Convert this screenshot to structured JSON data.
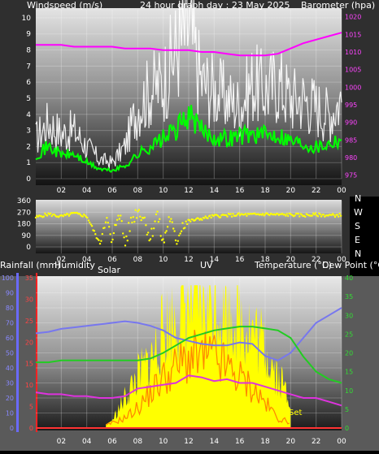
{
  "header": {
    "left_label": "Windspeed (m/s)",
    "title": "24 hour graph day : 23 May 2025",
    "right_label": "Barometer (hpa)"
  },
  "lower_header": {
    "rainfall": "Rainfall (mm)",
    "humidity": "Humidity",
    "solar": "Solar",
    "uv": "UV",
    "temperature": "Temperature (°C)",
    "dewpoint": "Dew Point (°C)"
  },
  "direction_labels": [
    "N",
    "W",
    "S",
    "E",
    "N"
  ],
  "set_label": "Set",
  "colors": {
    "gust": "#ffffff",
    "wind_avg": "#00ff00",
    "barometer": "#ff00ff",
    "direction": "#ffff00",
    "humidity": "#7777ee",
    "temperature": "#22cc22",
    "dewpoint": "#dd33dd",
    "solar": "#ffff00",
    "uv": "#ff8800",
    "rain": "#ff3333"
  },
  "chart_data": [
    {
      "type": "line",
      "title": "24 hour graph day : 23 May 2025",
      "ylabel": "Windspeed (m/s)",
      "y2label": "Barometer (hpa)",
      "ylim": [
        0,
        10.5
      ],
      "y2lim": [
        974,
        1022
      ],
      "yticks": [
        0,
        1,
        2,
        3,
        4,
        5,
        6,
        7,
        8,
        9,
        10
      ],
      "y2ticks": [
        975,
        980,
        985,
        990,
        995,
        1000,
        1005,
        1010,
        1015,
        1020
      ],
      "xticks": [
        "02",
        "04",
        "06",
        "08",
        "10",
        "12",
        "14",
        "16",
        "18",
        "20",
        "22",
        "00"
      ],
      "x": [
        0,
        1,
        2,
        3,
        4,
        5,
        6,
        7,
        8,
        9,
        10,
        11,
        12,
        13,
        14,
        15,
        16,
        17,
        18,
        19,
        20,
        21,
        22,
        23,
        24
      ],
      "series": [
        {
          "values": [
            2.5,
            3.5,
            2.8,
            3.0,
            2.0,
            1.2,
            1.0,
            2.0,
            4.5,
            5.5,
            6.0,
            8.0,
            9.5,
            6.0,
            5.5,
            5.0,
            4.5,
            6.0,
            5.5,
            6.0,
            5.0,
            5.0,
            4.5,
            4.0,
            5.0
          ]
        },
        {
          "values": [
            1.5,
            2.0,
            1.5,
            1.5,
            1.0,
            0.6,
            0.5,
            0.8,
            1.5,
            2.0,
            2.5,
            3.0,
            4.0,
            3.0,
            2.6,
            2.5,
            2.7,
            2.8,
            2.7,
            2.8,
            2.4,
            2.2,
            2.0,
            2.2,
            2.6
          ]
        },
        {
          "values": [
            1012,
            1012,
            1012,
            1011.5,
            1011.5,
            1011.5,
            1011.5,
            1011,
            1011,
            1011,
            1010.5,
            1010.5,
            1010.5,
            1010,
            1010,
            1009.5,
            1009,
            1009,
            1009,
            1009.5,
            1011,
            1012.5,
            1013.5,
            1014.5,
            1015.5
          ]
        }
      ]
    },
    {
      "type": "scatter",
      "ylim": [
        0,
        360
      ],
      "yticks": [
        0,
        90,
        180,
        270,
        360
      ],
      "xticks": [
        "02",
        "04",
        "06",
        "08",
        "10",
        "12",
        "14",
        "16",
        "18",
        "20",
        "22",
        "00"
      ],
      "x": [
        0,
        1,
        2,
        3,
        4,
        5,
        5.5,
        6,
        6.5,
        7,
        7.5,
        8,
        8.5,
        9,
        9.5,
        10,
        10.5,
        11,
        11.5,
        12,
        13,
        14,
        15,
        16,
        17,
        18,
        19,
        20,
        21,
        22,
        23,
        24
      ],
      "series": [
        {
          "values": [
            230,
            255,
            235,
            260,
            240,
            30,
            240,
            10,
            300,
            30,
            200,
            290,
            230,
            60,
            270,
            20,
            240,
            30,
            180,
            200,
            220,
            240,
            245,
            250,
            250,
            255,
            250,
            250,
            245,
            250,
            245,
            248
          ]
        }
      ]
    },
    {
      "type": "line",
      "ylabel": "Rainfall (mm)",
      "y2label": "Temperature (°C)",
      "ylim": [
        0,
        100
      ],
      "y2lim": [
        0,
        40
      ],
      "humidity_ticks": [
        0,
        10,
        20,
        30,
        40,
        50,
        60,
        70,
        80,
        90,
        100
      ],
      "rain_ticks": [
        0,
        5,
        10,
        15,
        20,
        25,
        30,
        35
      ],
      "temperature_ticks": [
        0,
        5,
        10,
        15,
        20,
        25,
        30,
        35,
        40
      ],
      "xticks": [
        "02",
        "04",
        "06",
        "08",
        "10",
        "12",
        "14",
        "16",
        "18",
        "20",
        "22",
        "00"
      ],
      "x": [
        0,
        1,
        2,
        3,
        4,
        5,
        6,
        7,
        8,
        9,
        10,
        11,
        12,
        13,
        14,
        15,
        16,
        17,
        18,
        19,
        20,
        21,
        22,
        23,
        24
      ],
      "series": [
        {
          "values": [
            63,
            64,
            66,
            67,
            68,
            69,
            70,
            71,
            70,
            68,
            65,
            60,
            58,
            56,
            55,
            55,
            57,
            56,
            48,
            45,
            50,
            60,
            70,
            75,
            80
          ]
        },
        {
          "values": [
            17.5,
            17.5,
            18,
            18,
            18,
            18,
            18,
            18,
            18,
            18.5,
            20,
            22,
            24,
            25,
            26,
            26.5,
            27,
            27,
            26.5,
            26,
            24,
            19,
            15,
            13,
            12
          ]
        },
        {
          "values": [
            9.5,
            9,
            9,
            8.5,
            8.5,
            8,
            8,
            8.5,
            10.5,
            11,
            11.5,
            12,
            14,
            13.5,
            12.5,
            13,
            12,
            12,
            11,
            10,
            9,
            8,
            8,
            7,
            6
          ]
        },
        {
          "values": [
            0,
            0,
            0,
            0,
            0,
            0,
            1,
            4,
            7,
            9,
            13,
            15,
            17,
            17,
            17,
            16,
            15,
            13,
            11,
            7,
            4,
            1,
            0,
            0,
            0
          ]
        },
        {
          "values": [
            0,
            0,
            0,
            0,
            0,
            0,
            0.5,
            1,
            2,
            3.5,
            5,
            6,
            7,
            7,
            7,
            6,
            5,
            4,
            2.5,
            1,
            0.5,
            0,
            0,
            0,
            0
          ]
        },
        {
          "values": [
            0,
            0,
            0,
            0,
            0,
            0,
            0,
            0,
            0,
            0,
            0,
            0,
            0,
            0,
            0,
            0,
            0,
            0,
            0,
            0,
            0,
            0,
            0,
            0,
            0
          ]
        }
      ]
    }
  ]
}
